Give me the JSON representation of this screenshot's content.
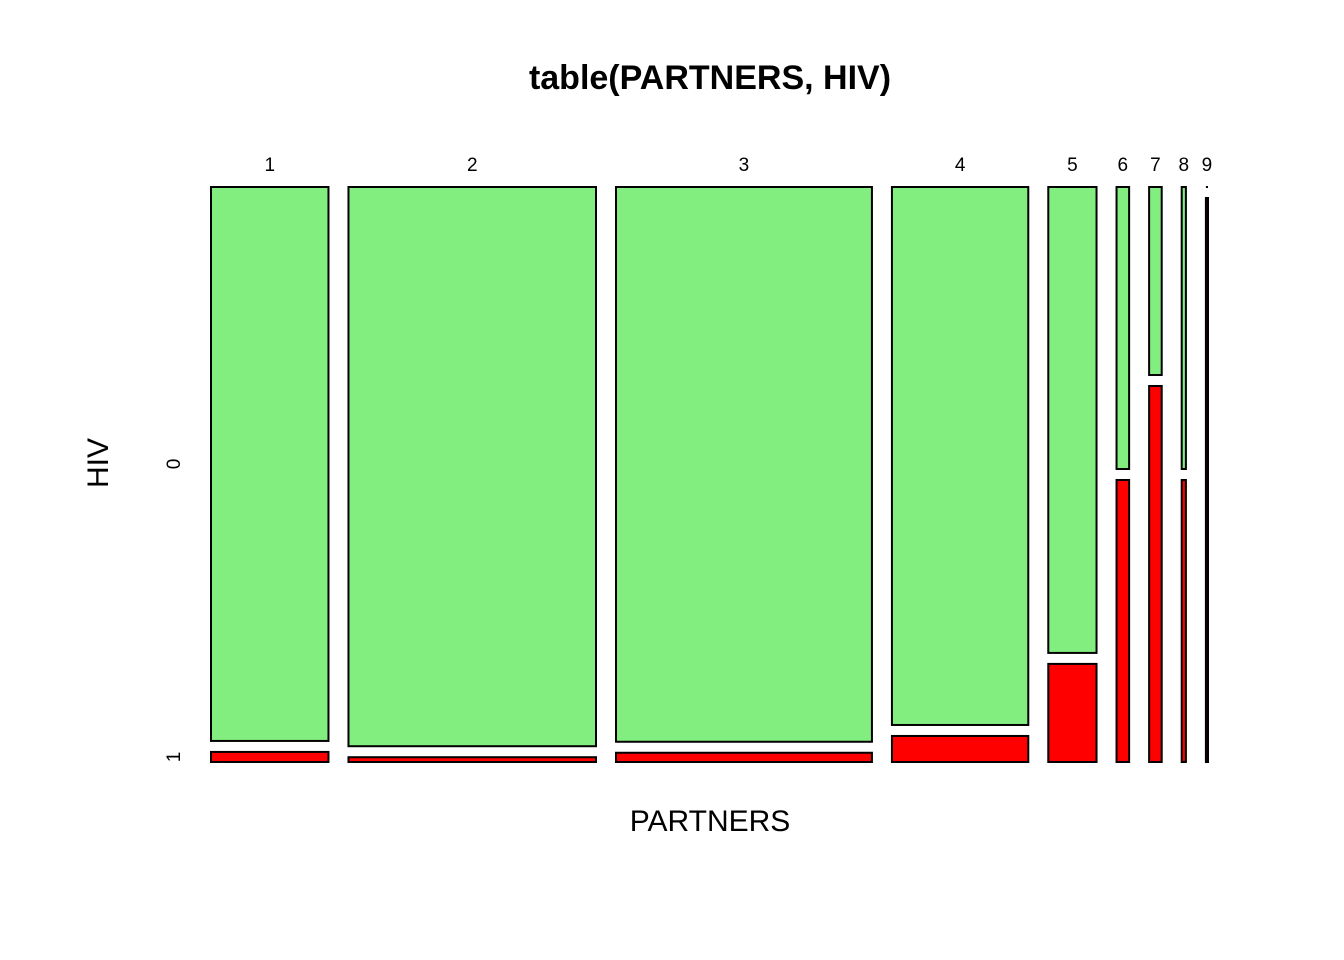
{
  "chart_data": {
    "type": "mosaic",
    "title": "table(PARTNERS, HIV)",
    "x_label": "PARTNERS",
    "y_label": "HIV",
    "categories": [
      "1",
      "2",
      "3",
      "4",
      "5",
      "6",
      "7",
      "8",
      "9"
    ],
    "series": [
      {
        "name": "0",
        "color": "#83ee80",
        "values": [
          55,
          117,
          120,
          62,
          19,
          3,
          2,
          1,
          0
        ]
      },
      {
        "name": "1",
        "color": "#ff0000",
        "values": [
          1,
          1,
          2,
          3,
          4,
          3,
          4,
          1,
          1
        ]
      }
    ]
  }
}
